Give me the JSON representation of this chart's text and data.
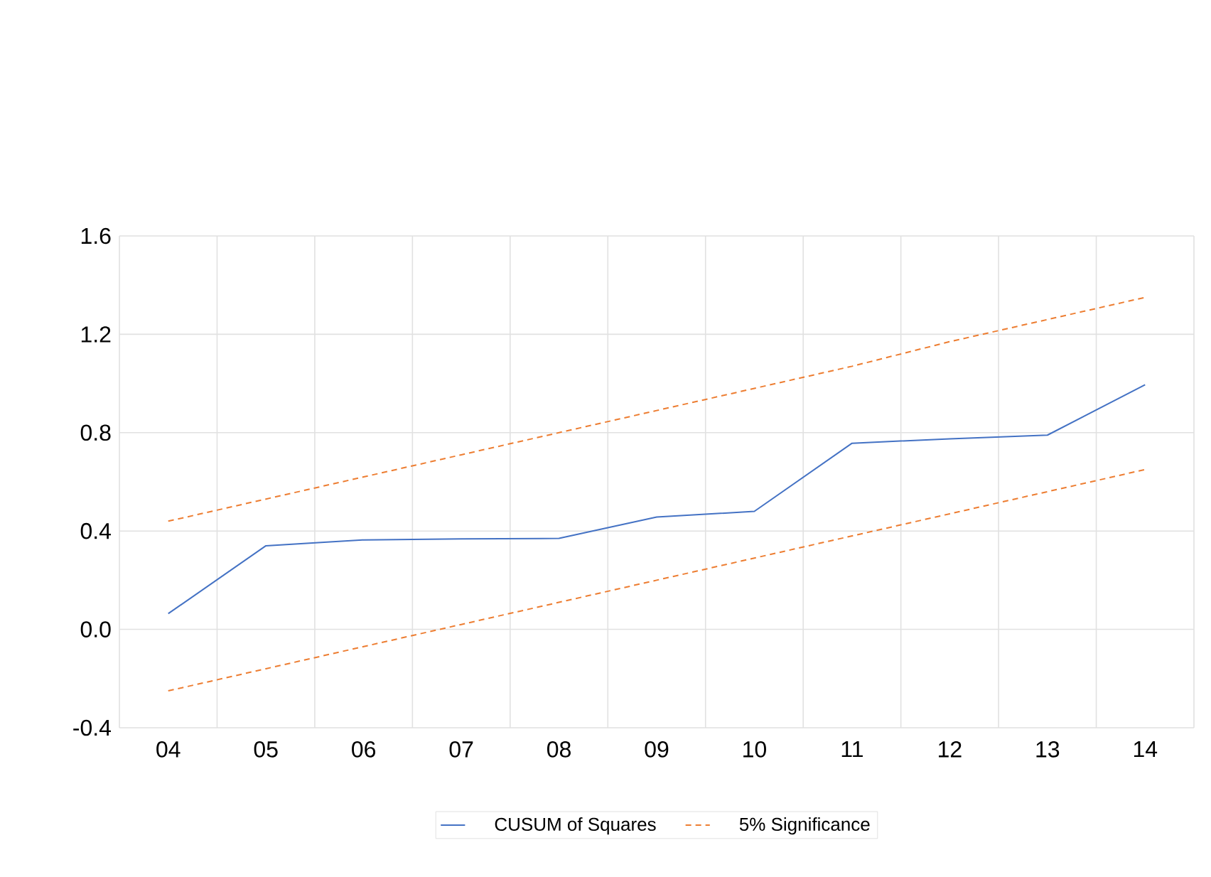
{
  "chart_data": {
    "type": "line",
    "categories": [
      "04",
      "05",
      "06",
      "07",
      "08",
      "09",
      "10",
      "11",
      "12",
      "13",
      "14"
    ],
    "series": [
      {
        "name": "CUSUM of Squares",
        "color": "#4472c4",
        "line_style": "solid",
        "values": [
          0.064,
          0.34,
          0.364,
          0.368,
          0.37,
          0.457,
          0.48,
          0.757,
          0.775,
          0.79,
          0.995
        ]
      },
      {
        "name": "5% Significance",
        "color": "#ed7d31",
        "line_style": "dashed",
        "values": [
          0.44,
          0.53,
          0.62,
          0.71,
          0.8,
          0.89,
          0.98,
          1.07,
          1.17,
          1.26,
          1.35
        ]
      },
      {
        "color": "#ed7d31",
        "line_style": "dashed",
        "values": [
          -0.25,
          -0.16,
          -0.07,
          0.02,
          0.11,
          0.2,
          0.29,
          0.38,
          0.47,
          0.56,
          0.65
        ]
      }
    ],
    "ylim": [
      -0.4,
      1.6
    ],
    "yticks": [
      -0.4,
      {
        "value": 0,
        "label": "0.0"
      },
      0.4,
      0.8,
      1.2,
      1.6
    ],
    "grid": true,
    "legend": "bottom",
    "marker": "none"
  }
}
